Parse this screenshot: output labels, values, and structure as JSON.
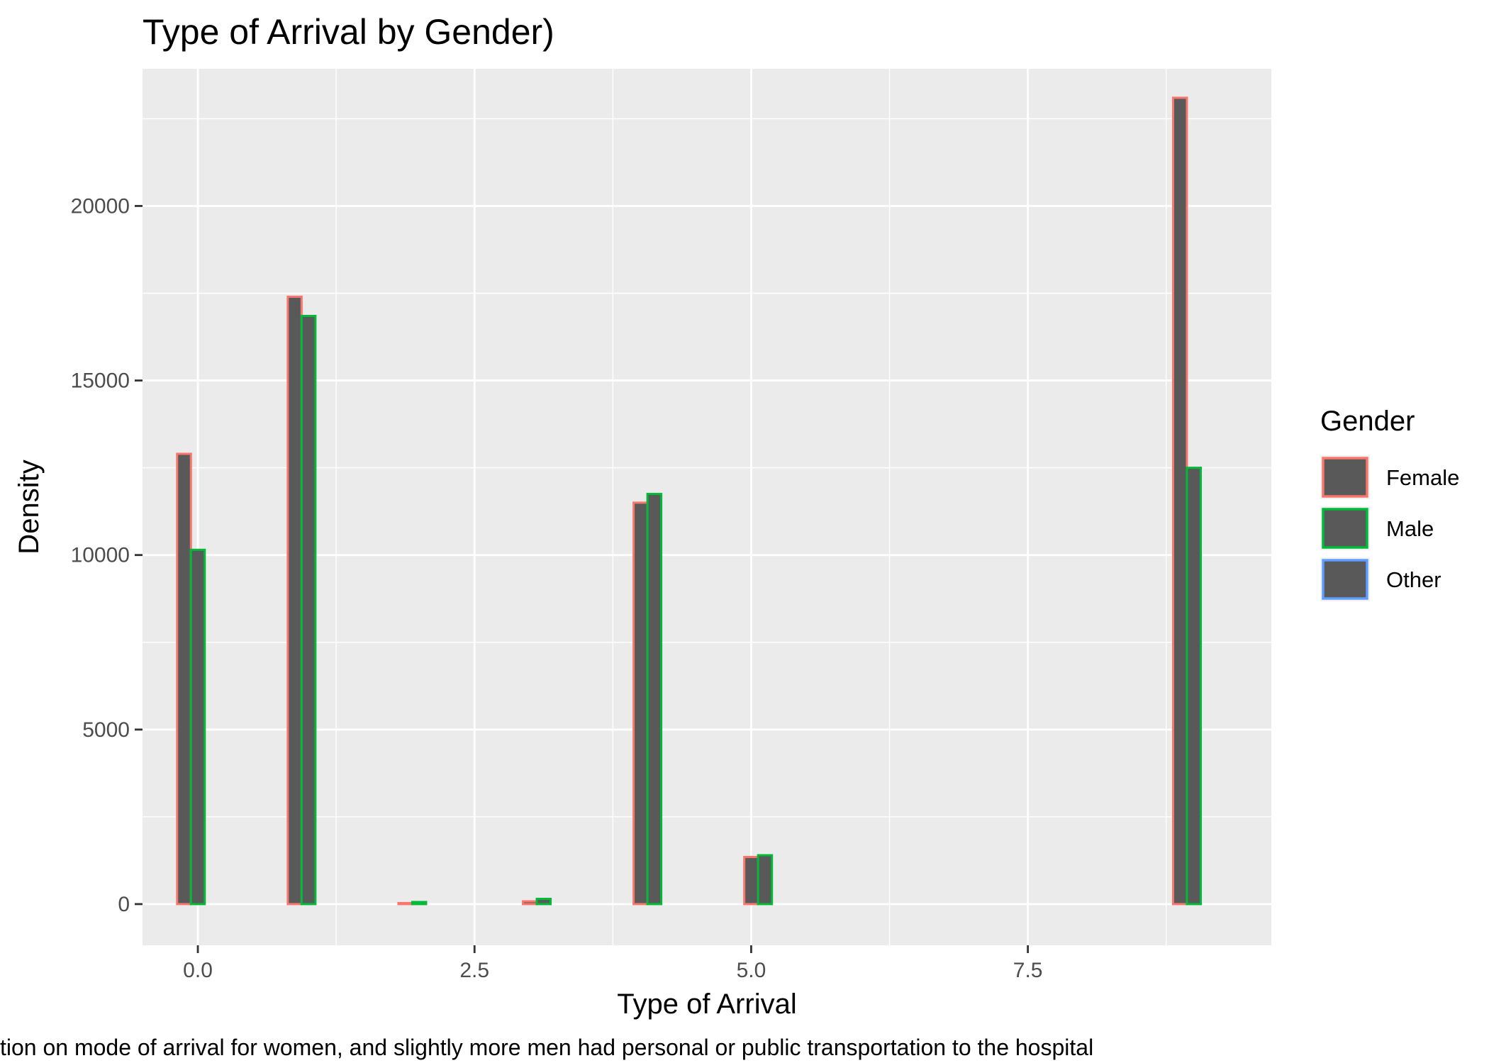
{
  "chart_data": {
    "type": "bar",
    "title": "Type of Arrival by Gender)",
    "xlabel": "Type of Arrival",
    "ylabel": "Density",
    "caption": "tion on mode of arrival for women, and slightly more men had personal or public transportation to the hospital",
    "xlim": [
      -0.5,
      9.7
    ],
    "ylim": [
      -1180,
      23930
    ],
    "x_ticks": [
      0.0,
      2.5,
      5.0,
      7.5
    ],
    "x_tick_labels": [
      "0.0",
      "2.5",
      "5.0",
      "7.5"
    ],
    "y_ticks": [
      0,
      5000,
      10000,
      15000,
      20000
    ],
    "y_tick_labels": [
      "0",
      "5000",
      "10000",
      "15000",
      "20000"
    ],
    "grid": true,
    "legend_position": "right",
    "legend_title": "Gender",
    "fill_color": "#595959",
    "panel_color": "#ebebeb",
    "bin_width": 0.125,
    "series": [
      {
        "name": "Female",
        "color": "#F8766D",
        "x": [
          -0.125,
          0.0,
          0.125,
          0.25,
          0.375,
          0.5,
          0.625,
          0.75,
          0.875,
          1.0,
          1.125,
          1.25,
          1.375,
          1.5,
          1.625,
          1.75,
          1.875,
          2.0,
          2.125,
          2.25,
          2.375,
          2.5,
          2.625,
          2.75,
          2.875,
          3.0,
          3.125,
          3.25,
          3.375,
          3.5,
          3.625,
          3.75,
          3.875,
          4.0,
          4.125,
          4.25,
          4.375,
          4.5,
          4.625,
          4.75,
          4.875,
          5.0,
          5.125,
          5.25,
          5.375,
          5.5,
          5.625,
          5.75,
          5.875,
          6.0,
          6.125,
          6.25,
          6.375,
          6.5,
          6.625,
          6.75,
          6.875,
          7.0,
          7.125,
          7.25,
          7.375,
          7.5,
          7.625,
          7.75,
          7.875,
          8.0,
          8.125,
          8.25,
          8.375,
          8.5,
          8.625,
          8.75,
          8.875
        ],
        "values": [
          12900,
          0,
          0,
          0,
          0,
          0,
          0,
          0,
          17400,
          0,
          0,
          0,
          0,
          0,
          0,
          0,
          30,
          0,
          0,
          0,
          0,
          0,
          0,
          0,
          0,
          80,
          0,
          0,
          0,
          0,
          0,
          0,
          0,
          11500,
          0,
          0,
          0,
          0,
          0,
          0,
          0,
          1350,
          0,
          0,
          0,
          0,
          0,
          0,
          0,
          0,
          0,
          0,
          0,
          0,
          0,
          0,
          0,
          0,
          0,
          0,
          0,
          0,
          0,
          0,
          0,
          0,
          0,
          0,
          0,
          0,
          0,
          0,
          23100
        ]
      },
      {
        "name": "Male",
        "color": "#00BA38",
        "x": [
          0.0,
          0.125,
          0.25,
          0.375,
          0.5,
          0.625,
          0.75,
          0.875,
          1.0,
          1.125,
          1.25,
          1.375,
          1.5,
          1.625,
          1.75,
          1.875,
          2.0,
          2.125,
          2.25,
          2.375,
          2.5,
          2.625,
          2.75,
          2.875,
          3.0,
          3.125,
          3.25,
          3.375,
          3.5,
          3.625,
          3.75,
          3.875,
          4.0,
          4.125,
          4.25,
          4.375,
          4.5,
          4.625,
          4.75,
          4.875,
          5.0,
          5.125,
          5.25,
          5.375,
          5.5,
          5.625,
          5.75,
          5.875,
          6.0,
          6.125,
          6.25,
          6.375,
          6.5,
          6.625,
          6.75,
          6.875,
          7.0,
          7.125,
          7.25,
          7.375,
          7.5,
          7.625,
          7.75,
          7.875,
          8.0,
          8.125,
          8.25,
          8.375,
          8.5,
          8.625,
          8.75,
          8.875,
          9.0
        ],
        "values": [
          10150,
          0,
          0,
          0,
          0,
          0,
          0,
          0,
          16850,
          0,
          0,
          0,
          0,
          0,
          0,
          0,
          60,
          0,
          0,
          0,
          0,
          0,
          0,
          0,
          0,
          150,
          0,
          0,
          0,
          0,
          0,
          0,
          0,
          11750,
          0,
          0,
          0,
          0,
          0,
          0,
          0,
          1400,
          0,
          0,
          0,
          0,
          0,
          0,
          0,
          0,
          0,
          0,
          0,
          0,
          0,
          0,
          0,
          0,
          0,
          0,
          0,
          0,
          0,
          0,
          0,
          0,
          0,
          0,
          0,
          0,
          0,
          0,
          12500
        ]
      },
      {
        "name": "Other",
        "color": "#619CFF",
        "x": [
          0.125,
          0.25,
          0.375,
          0.5,
          0.625,
          0.75,
          0.875,
          1.0,
          1.125,
          1.25,
          1.375,
          1.5,
          1.625,
          1.75,
          1.875,
          2.0,
          2.125,
          2.25,
          2.375,
          2.5,
          2.625,
          2.75,
          2.875,
          3.0,
          3.125,
          3.25,
          3.375,
          3.5,
          3.625,
          3.75,
          3.875,
          4.0,
          4.125,
          4.25,
          4.375,
          4.5,
          4.625,
          4.75,
          4.875,
          5.0,
          5.125,
          5.25,
          5.375,
          5.5,
          5.625,
          5.75,
          5.875,
          6.0,
          6.125,
          6.25,
          6.375,
          6.5,
          6.625,
          6.75,
          6.875,
          7.0,
          7.125,
          7.25,
          7.375,
          7.5,
          7.625,
          7.75,
          7.875,
          8.0,
          8.125,
          8.25,
          8.375,
          8.5,
          8.625,
          8.75,
          8.875,
          9.0,
          9.125
        ],
        "values": [
          0,
          0,
          0,
          0,
          0,
          0,
          0,
          0,
          0,
          0,
          0,
          0,
          0,
          0,
          0,
          0,
          0,
          0,
          0,
          0,
          0,
          0,
          0,
          0,
          0,
          0,
          0,
          0,
          0,
          0,
          0,
          0,
          0,
          0,
          0,
          0,
          0,
          0,
          0,
          0,
          0,
          0,
          0,
          0,
          0,
          0,
          0,
          0,
          0,
          0,
          0,
          0,
          0,
          0,
          0,
          0,
          0,
          0,
          0,
          0,
          0,
          0,
          0,
          0,
          0,
          0,
          0,
          0,
          0,
          0,
          0,
          0,
          0
        ]
      }
    ]
  }
}
